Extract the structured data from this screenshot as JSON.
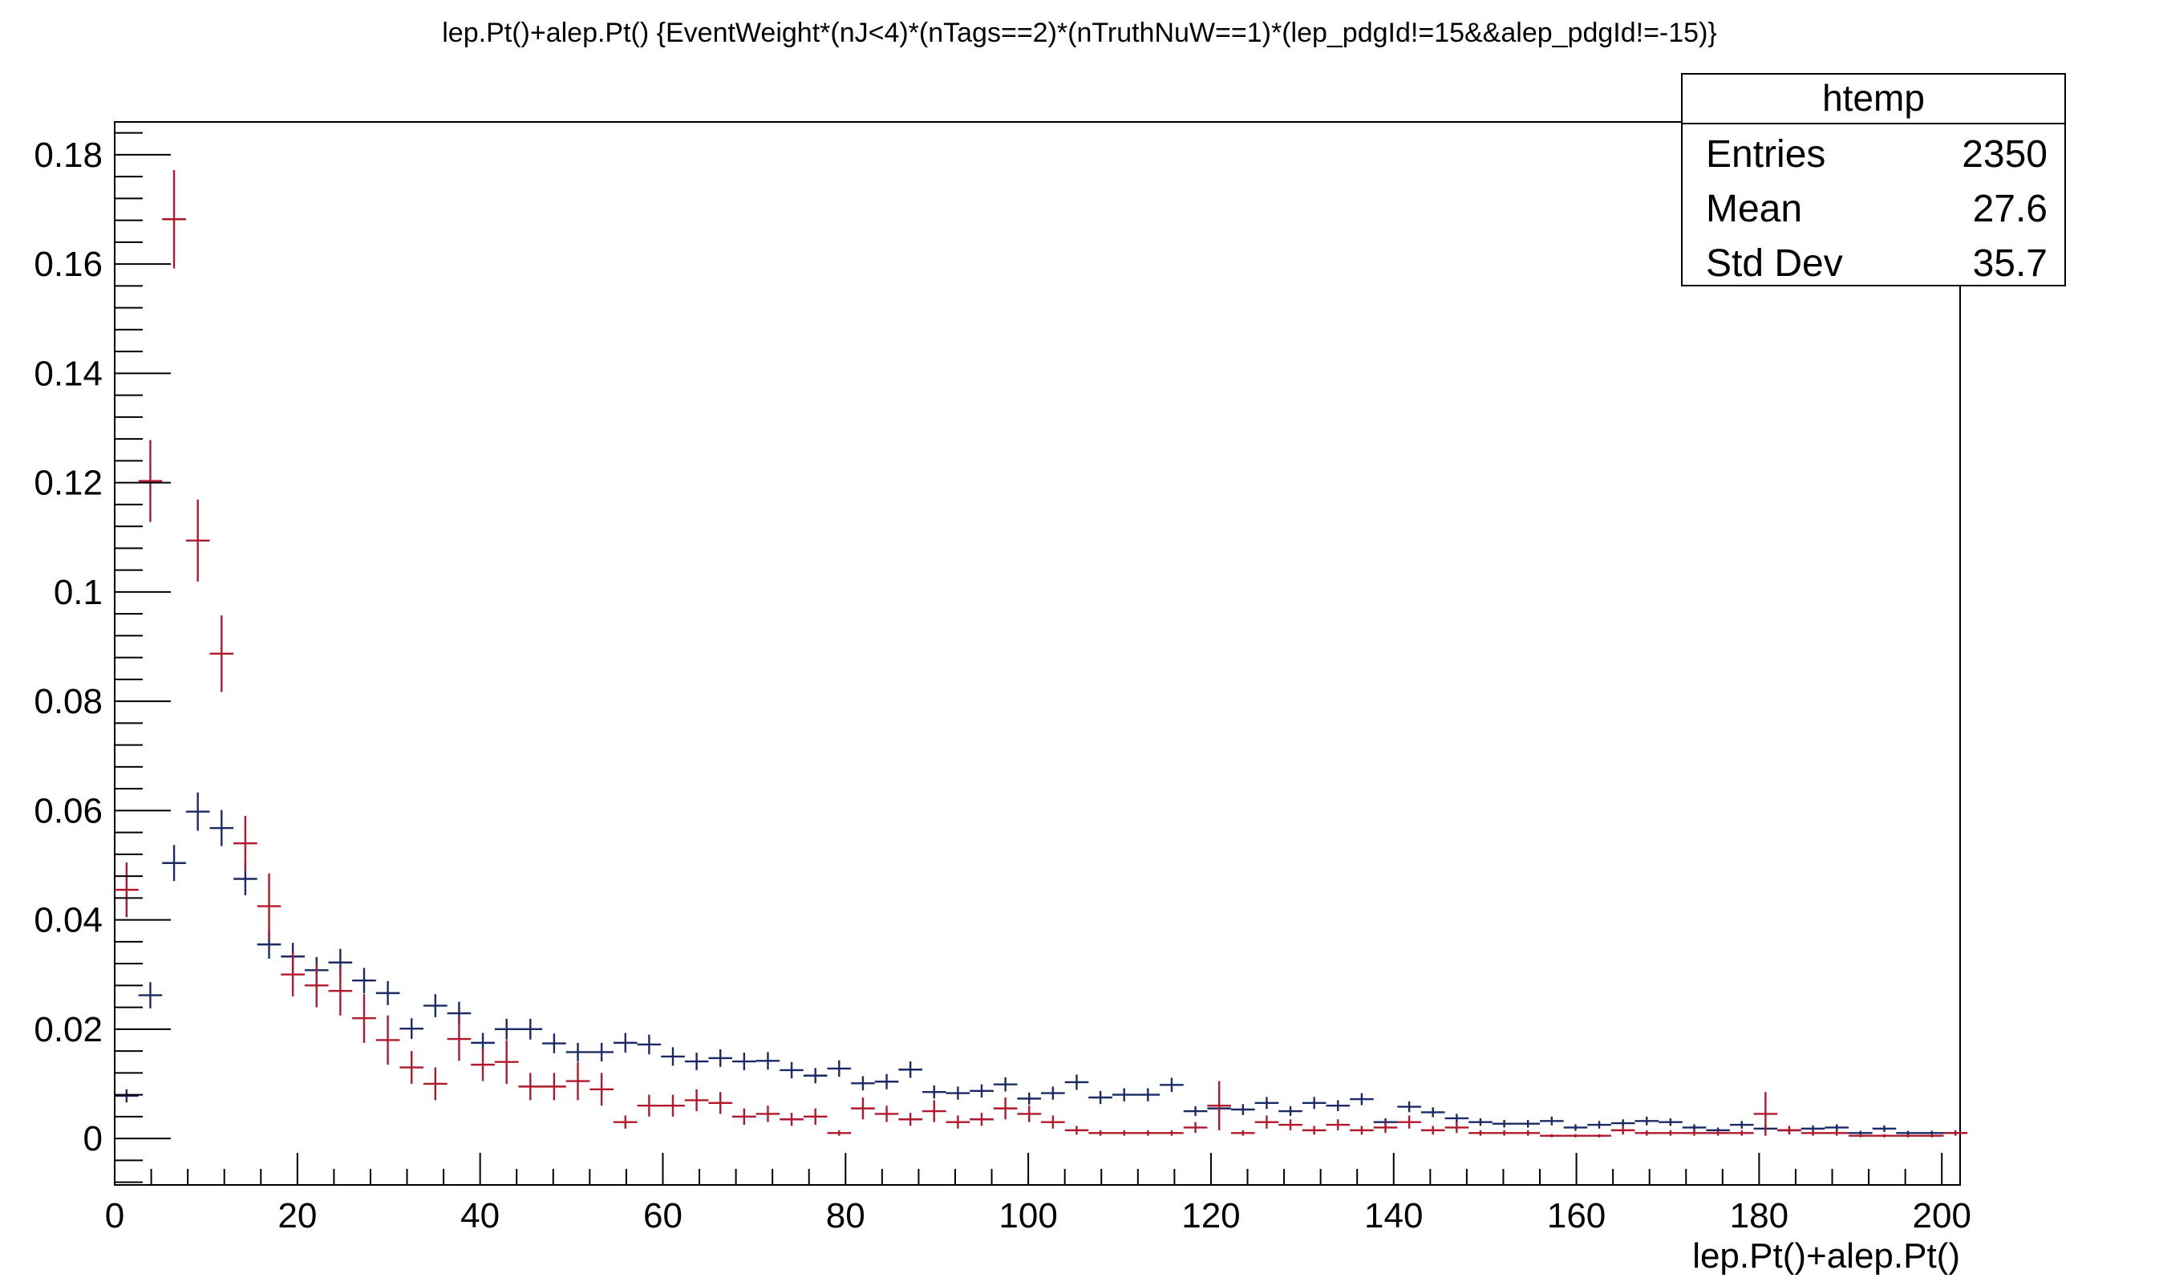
{
  "chart_data": {
    "type": "scatter",
    "title": "lep.Pt()+alep.Pt() {EventWeight*(nJ<4)*(nTags==2)*(nTruthNuW==1)*(lep_pdgId!=15&&alep_pdgId!=-15)}",
    "xlabel": "lep.Pt()+alep.Pt()",
    "ylabel": "",
    "xlim": [
      0,
      202
    ],
    "ylim": [
      -0.0085,
      0.186
    ],
    "x_ticks": [
      0,
      20,
      40,
      60,
      80,
      100,
      120,
      140,
      160,
      180,
      200
    ],
    "y_ticks": [
      0,
      0.02,
      0.04,
      0.06,
      0.08,
      0.1,
      0.12,
      0.14,
      0.16,
      0.18
    ],
    "x_tick_labels": [
      "0",
      "20",
      "40",
      "60",
      "80",
      "100",
      "120",
      "140",
      "160",
      "180",
      "200"
    ],
    "y_tick_labels": [
      "0",
      "0.02",
      "0.04",
      "0.06",
      "0.08",
      "0.1",
      "0.12",
      "0.14",
      "0.16",
      "0.18"
    ],
    "bin_width": 2.6,
    "grid": false,
    "legend": "none",
    "stats_box": {
      "name": "htemp",
      "rows": [
        {
          "label": "Entries",
          "value": "2350"
        },
        {
          "label": "Mean",
          "value": "27.6"
        },
        {
          "label": "Std Dev",
          "value": "35.7"
        }
      ]
    },
    "series": [
      {
        "color": "#1a2a66",
        "x": [
          1.3,
          3.9,
          6.5,
          9.1,
          11.7,
          14.3,
          16.9,
          19.5,
          22.1,
          24.7,
          27.3,
          29.9,
          32.5,
          35.1,
          37.7,
          40.3,
          42.9,
          45.5,
          48.1,
          50.7,
          53.3,
          55.9,
          58.5,
          61.1,
          63.7,
          66.3,
          68.9,
          71.5,
          74.1,
          76.7,
          79.3,
          81.9,
          84.5,
          87.1,
          89.7,
          92.3,
          94.9,
          97.5,
          100.1,
          102.7,
          105.3,
          107.9,
          110.5,
          113.1,
          115.7,
          118.3,
          120.9,
          123.5,
          126.1,
          128.7,
          131.3,
          133.9,
          136.5,
          139.1,
          141.7,
          144.3,
          146.9,
          149.5,
          152.1,
          154.7,
          157.3,
          159.9,
          162.5,
          165.1,
          167.7,
          170.3,
          172.9,
          175.5,
          178.1,
          180.7,
          183.3,
          185.9,
          188.5,
          191.1,
          193.7,
          196.3,
          198.9,
          201.5
        ],
        "y": [
          0.0078,
          0.0262,
          0.0504,
          0.0598,
          0.0568,
          0.0475,
          0.0355,
          0.0333,
          0.0308,
          0.0322,
          0.0289,
          0.0266,
          0.0201,
          0.0243,
          0.0229,
          0.0175,
          0.02,
          0.02,
          0.0174,
          0.0158,
          0.0158,
          0.0175,
          0.0172,
          0.015,
          0.0141,
          0.0147,
          0.0141,
          0.0142,
          0.0125,
          0.0115,
          0.0128,
          0.0101,
          0.0104,
          0.0126,
          0.0085,
          0.0083,
          0.0087,
          0.0099,
          0.0073,
          0.0083,
          0.0103,
          0.0075,
          0.008,
          0.008,
          0.0098,
          0.005,
          0.0055,
          0.0053,
          0.0065,
          0.005,
          0.0065,
          0.006,
          0.0072,
          0.003,
          0.0058,
          0.0048,
          0.0037,
          0.003,
          0.0027,
          0.0027,
          0.0032,
          0.002,
          0.0025,
          0.0028,
          0.0032,
          0.003,
          0.002,
          0.0015,
          0.0025,
          0.0018,
          0.0015,
          0.0018,
          0.002,
          0.001,
          0.0018,
          0.001,
          0.001,
          0.001
        ],
        "err": [
          0.0012,
          0.0024,
          0.0033,
          0.0035,
          0.0033,
          0.003,
          0.0026,
          0.0025,
          0.0024,
          0.0025,
          0.0023,
          0.0022,
          0.0019,
          0.0021,
          0.0021,
          0.0018,
          0.0019,
          0.0019,
          0.0018,
          0.0017,
          0.0017,
          0.0018,
          0.0018,
          0.0017,
          0.0016,
          0.0016,
          0.0016,
          0.0016,
          0.0015,
          0.0014,
          0.0015,
          0.0013,
          0.0014,
          0.0015,
          0.0012,
          0.0012,
          0.0012,
          0.0013,
          0.0011,
          0.0012,
          0.0014,
          0.0012,
          0.0012,
          0.0012,
          0.0013,
          0.0009,
          0.001,
          0.001,
          0.0011,
          0.0009,
          0.0011,
          0.001,
          0.0011,
          0.0007,
          0.001,
          0.0009,
          0.0008,
          0.0007,
          0.0007,
          0.0007,
          0.0008,
          0.0006,
          0.0007,
          0.0007,
          0.0008,
          0.0007,
          0.0006,
          0.0005,
          0.0007,
          0.0006,
          0.0005,
          0.0006,
          0.0006,
          0.0004,
          0.0006,
          0.0004,
          0.0004,
          0.0004
        ]
      },
      {
        "color": "#b2182b",
        "x": [
          1.3,
          3.9,
          6.5,
          9.1,
          11.7,
          14.3,
          16.9,
          19.5,
          22.1,
          24.7,
          27.3,
          29.9,
          32.5,
          35.1,
          37.7,
          40.3,
          42.9,
          45.5,
          48.1,
          50.7,
          53.3,
          55.9,
          58.5,
          61.1,
          63.7,
          66.3,
          68.9,
          71.5,
          74.1,
          76.7,
          79.3,
          81.9,
          84.5,
          87.1,
          89.7,
          92.3,
          94.9,
          97.5,
          100.1,
          102.7,
          105.3,
          107.9,
          110.5,
          113.1,
          115.7,
          118.3,
          120.9,
          123.5,
          126.1,
          128.7,
          131.3,
          133.9,
          136.5,
          139.1,
          141.7,
          144.3,
          146.9,
          149.5,
          152.1,
          154.7,
          157.3,
          159.9,
          162.5,
          165.1,
          167.7,
          170.3,
          172.9,
          175.5,
          178.1,
          180.7,
          183.3,
          185.9,
          188.5,
          191.1,
          193.7,
          196.3,
          198.9,
          201.5
        ],
        "y": [
          0.0455,
          0.1203,
          0.1682,
          0.1094,
          0.0887,
          0.054,
          0.0425,
          0.03,
          0.028,
          0.027,
          0.022,
          0.018,
          0.013,
          0.01,
          0.0182,
          0.0135,
          0.014,
          0.0095,
          0.0095,
          0.0105,
          0.009,
          0.003,
          0.006,
          0.006,
          0.007,
          0.0065,
          0.004,
          0.0045,
          0.0035,
          0.004,
          0.001,
          0.0055,
          0.0045,
          0.0035,
          0.005,
          0.003,
          0.0035,
          0.0055,
          0.0045,
          0.003,
          0.0015,
          0.001,
          0.001,
          0.001,
          0.001,
          0.002,
          0.006,
          0.001,
          0.003,
          0.0025,
          0.0015,
          0.0025,
          0.0015,
          0.002,
          0.003,
          0.0015,
          0.002,
          0.001,
          0.001,
          0.001,
          0.0005,
          0.0005,
          0.0005,
          0.0015,
          0.001,
          0.001,
          0.001,
          0.001,
          0.001,
          0.0045,
          0.0015,
          0.001,
          0.001,
          0.0005,
          0.0005,
          0.0005,
          0.0005,
          0.001
        ],
        "err": [
          0.005,
          0.0075,
          0.009,
          0.0075,
          0.007,
          0.005,
          0.006,
          0.004,
          0.004,
          0.0045,
          0.0045,
          0.0045,
          0.003,
          0.003,
          0.004,
          0.003,
          0.004,
          0.0025,
          0.0025,
          0.0035,
          0.003,
          0.0012,
          0.002,
          0.002,
          0.002,
          0.002,
          0.0015,
          0.0015,
          0.0012,
          0.0015,
          0.0005,
          0.002,
          0.0015,
          0.0012,
          0.002,
          0.0012,
          0.0012,
          0.002,
          0.0015,
          0.0012,
          0.0008,
          0.0005,
          0.0005,
          0.0005,
          0.0005,
          0.001,
          0.0045,
          0.0005,
          0.0012,
          0.001,
          0.0008,
          0.001,
          0.0008,
          0.001,
          0.0012,
          0.0008,
          0.001,
          0.0005,
          0.0005,
          0.0005,
          0.0003,
          0.0003,
          0.0003,
          0.0008,
          0.0005,
          0.0005,
          0.0005,
          0.0005,
          0.0005,
          0.004,
          0.0008,
          0.0005,
          0.0005,
          0.0003,
          0.0003,
          0.0003,
          0.0003,
          0.0005
        ]
      }
    ]
  }
}
